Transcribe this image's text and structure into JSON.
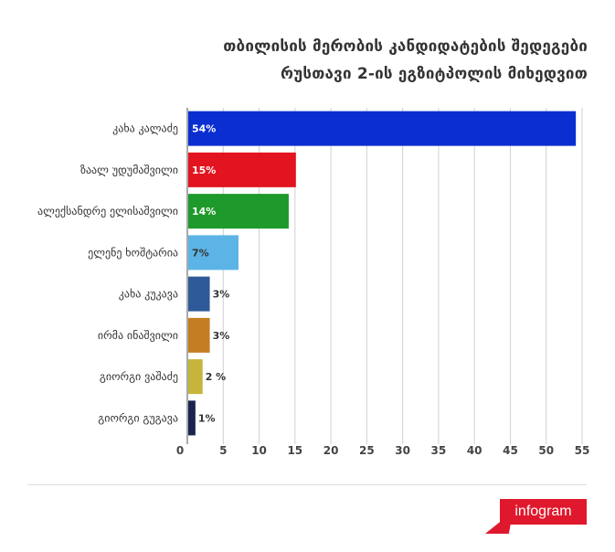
{
  "title_lines": [
    "თბილისის მერობის კანდიდატების შედეგები",
    "რუსთავი 2-ის ეგზიტპოლის მიხედვით"
  ],
  "chart_data": {
    "type": "bar",
    "orientation": "horizontal",
    "title": "თბილისის მერობის კანდიდატების შედეგები რუსთავი 2-ის ეგზიტპოლის მიხედვით",
    "categories": [
      "კახა კალაძე",
      "ზაალ უდუმაშვილი",
      "ალექსანდრე ელისაშვილი",
      "ელენე ხოშტარია",
      "კახა კუკავა",
      "ირმა ინაშვილი",
      "გიორგი ვაშაძე",
      "გიორგი გუგავა"
    ],
    "values": [
      54,
      15,
      14,
      7,
      3,
      3,
      2,
      1
    ],
    "data_labels": [
      "54%",
      "15%",
      "14%",
      "7%",
      "3%",
      "3%",
      "2 %",
      "1%"
    ],
    "colors": [
      "#0b2ed0",
      "#e2141f",
      "#1e9a2c",
      "#5cb4e6",
      "#2e5a99",
      "#c47e22",
      "#c6b53c",
      "#1a2450"
    ],
    "label_colors": [
      "#ffffff",
      "#ffffff",
      "#ffffff",
      "#333333",
      "#ffffff",
      "#333333",
      "#333333",
      "#333333"
    ],
    "xlim": [
      0,
      55
    ],
    "xticks": [
      0,
      5,
      10,
      15,
      20,
      25,
      30,
      35,
      40,
      45,
      50,
      55
    ],
    "grid": true,
    "xlabel": "",
    "ylabel": ""
  },
  "brand": {
    "logo_text": "infogram",
    "logo_color": "#e0182d"
  }
}
